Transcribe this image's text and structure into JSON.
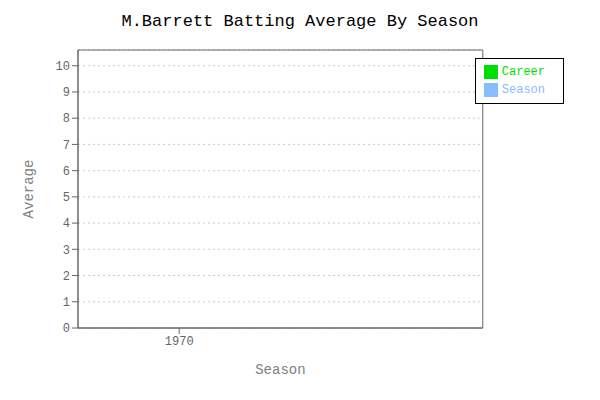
{
  "chart_data": {
    "type": "bar",
    "title": "M.Barrett Batting Average By Season",
    "xlabel": "Season",
    "ylabel": "Average",
    "x": [],
    "xlim": [
      1969.5,
      1971.5
    ],
    "xticks": [
      1970
    ],
    "ylim": [
      0,
      10.6
    ],
    "yticks": [
      0,
      1,
      2,
      3,
      4,
      5,
      6,
      7,
      8,
      9,
      10
    ],
    "grid": "y",
    "legend": "upper right",
    "series": [
      {
        "name": "Season",
        "color": "#88bbff",
        "values": []
      },
      {
        "name": "Career",
        "color": "#00dd00",
        "values": []
      }
    ]
  }
}
